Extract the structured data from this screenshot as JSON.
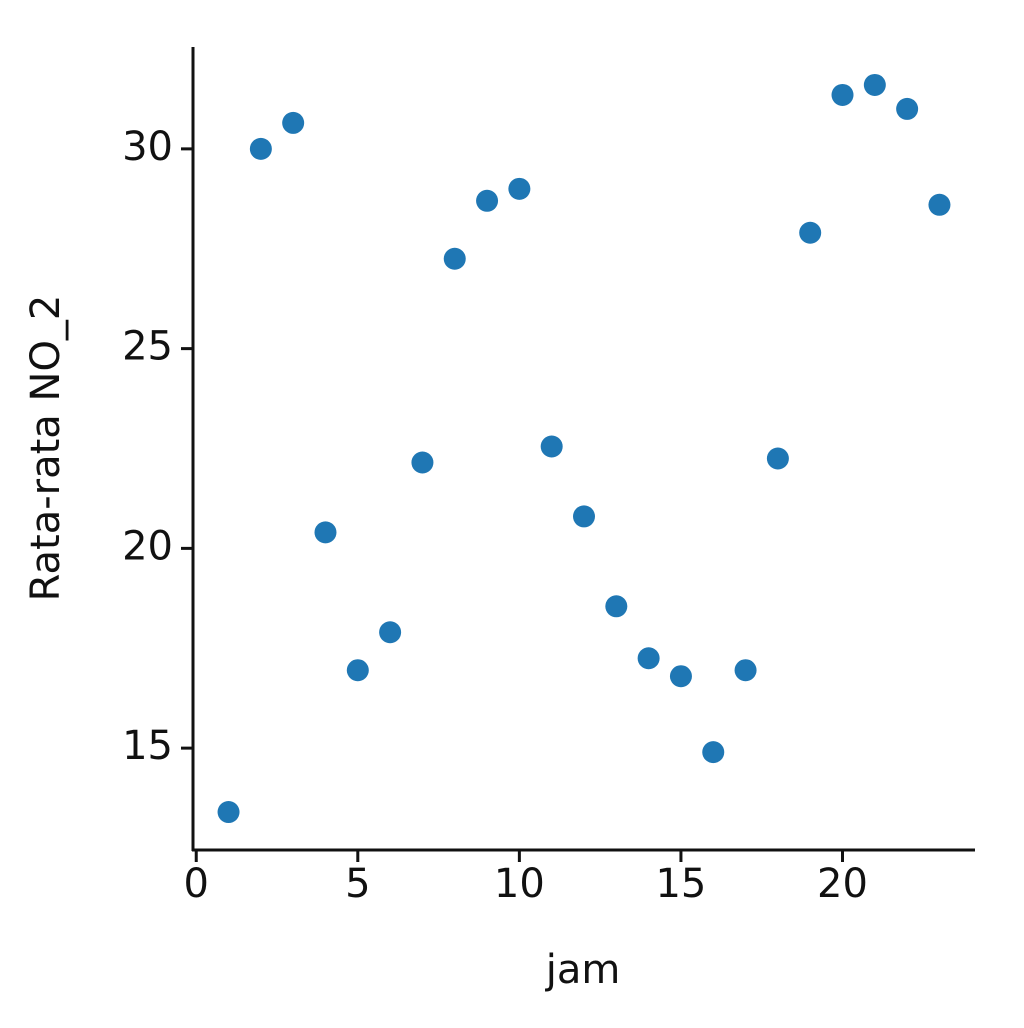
{
  "chart_data": {
    "type": "scatter",
    "x_label": "jam",
    "y_label": "Rata-rata NO_2",
    "x": [
      1,
      2,
      3,
      4,
      5,
      6,
      7,
      8,
      9,
      10,
      11,
      12,
      13,
      14,
      15,
      16,
      17,
      18,
      19,
      20,
      21,
      22,
      23
    ],
    "series": [
      {
        "color": "#1f77b4",
        "values": [
          13.4,
          30.0,
          30.65,
          20.4,
          16.95,
          17.9,
          22.15,
          27.25,
          28.7,
          29.0,
          22.55,
          20.8,
          18.55,
          17.25,
          16.8,
          14.9,
          16.95,
          22.25,
          27.9,
          31.35,
          31.6,
          31.0,
          28.6
        ]
      }
    ],
    "xlim": [
      -0.1,
      24.1
    ],
    "ylim": [
      12.45,
      32.55
    ],
    "xticks": [
      0,
      5,
      10,
      15,
      20
    ],
    "yticks": [
      15,
      20,
      25,
      30
    ],
    "grid": false
  }
}
